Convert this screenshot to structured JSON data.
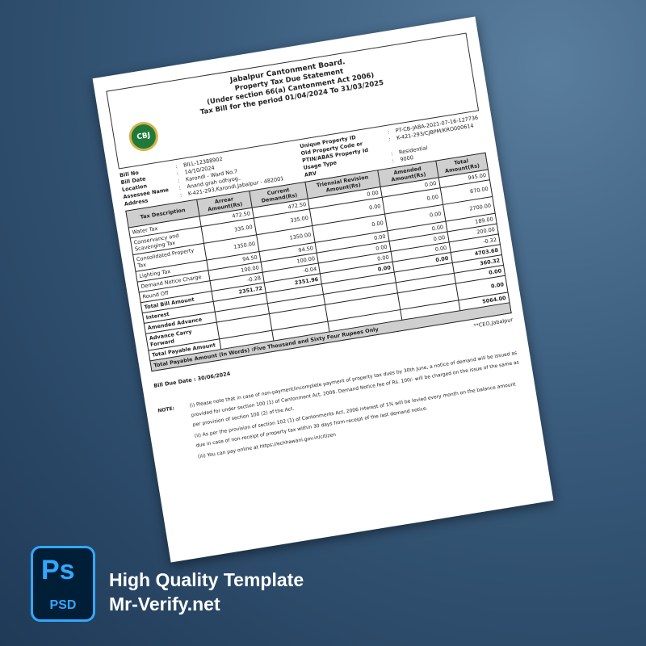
{
  "bill": {
    "title": "Jabalpur Cantonment Board.",
    "subtitle": "Property Tax Due Statement",
    "section": "(Under section 66(a) Cantonment Act 2006)",
    "period": "Tax Bill for the period 01/04/2024 To 31/03/2025",
    "seal_text": "CBJ",
    "left": [
      {
        "k": "Bill No",
        "v": "BILL-12388902"
      },
      {
        "k": "Bill Date",
        "v": "14/10/2024"
      },
      {
        "k": "Location",
        "v": "Karondi - Ward No.7"
      },
      {
        "k": "Assessee Name",
        "v": "Anand grah udhyog.."
      },
      {
        "k": "Address",
        "v": "K-421-293,Karondi,Jabalpur - 482001"
      }
    ],
    "right": [
      {
        "k": "Unique Property ID",
        "v": "PT-CB-JABA-2021-07-16-127736"
      },
      {
        "k": "Old Property Code or PTIN/ABAS Property Id",
        "v": "K-421-293/CJBPM/KRO000614"
      },
      {
        "k": "Usage Type",
        "v": "Residential"
      },
      {
        "k": "ARV",
        "v": "9000"
      }
    ],
    "columns": [
      "Tax Description",
      "Arrear Amount(Rs)",
      "Current Demand(Rs)",
      "Triennial Revision Amount(Rs)",
      "Amended Amount(Rs)",
      "Total Amount(Rs)"
    ],
    "rows": [
      [
        "Water Tax",
        "472.50",
        "472.50",
        "0.00",
        "0.00",
        "945.00"
      ],
      [
        "Conservancy and Scavenging Tax",
        "335.00",
        "335.00",
        "0.00",
        "0.00",
        "670.00"
      ],
      [
        "Consolidated Property Tax",
        "1350.00",
        "1350.00",
        "0.00",
        "0.00",
        "2700.00"
      ],
      [
        "Lighting Tax",
        "94.50",
        "94.50",
        "0.00",
        "0.00",
        "189.00"
      ],
      [
        "Demand Notice Charge",
        "100.00",
        "100.00",
        "0.00",
        "0.00",
        "200.00"
      ],
      [
        "Round Off",
        "-0.28",
        "-0.04",
        "0.00",
        "0.00",
        "-0.32"
      ],
      [
        "Total Bill Amount",
        "2351.72",
        "2351.96",
        "0.00",
        "0.00",
        "4703.68"
      ],
      [
        "Interest",
        "",
        "",
        "",
        "",
        "360.32"
      ],
      [
        "Amended Advance",
        "",
        "",
        "",
        "",
        "0.00"
      ],
      [
        "Advance Carry Forward",
        "",
        "",
        "",
        "",
        "0.00"
      ],
      [
        "Total Payable Amount",
        "",
        "",
        "",
        "",
        "5064.00"
      ]
    ],
    "words": "Total Payable Amount (In Words) :Five Thousand and Sixty Four  Rupees Only",
    "ceo": "**CEO,Jabalpur",
    "due": "Bill Due Date : 30/06/2024",
    "note_label": "NOTE:",
    "notes": [
      "(i)  Please note that in case of non-payment/incomplete payment of property tax dues by 30th June, a notice of demand will be issued as provided for under section 100 (1) of Cantonment Act, 2006. Demand Notice fee of Rs. 100/- will be charged on the issue of the same as per provision of section 100 (2) of the Act.",
      "(ii)  As per the provision of section 102 (1) of Cantonments Act, 2006 interest of 1% will be levied every month on the balance amount due in case of non-receipt of property tax within 30 days from receipt of the last demand notice.",
      "(iii) You can pay online at https://echhawani.gov.in/citizen"
    ]
  },
  "badge": {
    "top": "Ps",
    "bottom": "PSD",
    "color": "#31a8ff"
  },
  "promo": {
    "line1": "High Quality Template",
    "line2": "Mr-Verify.net"
  }
}
